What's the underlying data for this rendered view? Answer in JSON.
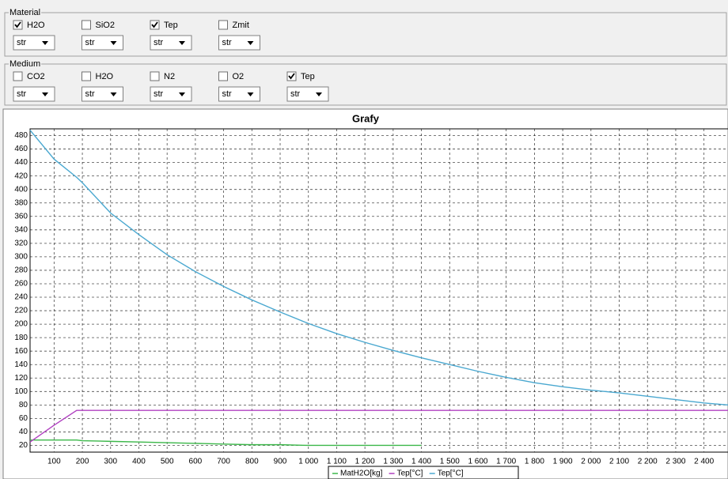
{
  "material": {
    "title": "Material",
    "items": [
      {
        "label": "H2O",
        "checked": true,
        "select": "str"
      },
      {
        "label": "SiO2",
        "checked": false,
        "select": "str"
      },
      {
        "label": "Tep",
        "checked": true,
        "select": "str"
      },
      {
        "label": "Zmit",
        "checked": false,
        "select": "str"
      }
    ]
  },
  "medium": {
    "title": "Medium",
    "items": [
      {
        "label": "CO2",
        "checked": false,
        "select": "str"
      },
      {
        "label": "H2O",
        "checked": false,
        "select": "str"
      },
      {
        "label": "N2",
        "checked": false,
        "select": "str"
      },
      {
        "label": "O2",
        "checked": false,
        "select": "str"
      },
      {
        "label": "Tep",
        "checked": true,
        "select": "str"
      }
    ]
  },
  "chart_data": {
    "type": "line",
    "title": "Grafy",
    "grid": true,
    "legend": "bottom",
    "x": [
      15,
      100,
      180,
      200,
      300,
      400,
      500,
      600,
      700,
      800,
      900,
      1000,
      1100,
      1200,
      1300,
      1400,
      1500,
      1600,
      1700,
      1800,
      1900,
      2000,
      2100,
      2200,
      2300,
      2400,
      2485
    ],
    "series": [
      {
        "name": "MatH2O[kg]",
        "color": "#3cb84a",
        "values": [
          28,
          28,
          28,
          27,
          26,
          25,
          24,
          23,
          22,
          21,
          21,
          20,
          20,
          20,
          20,
          20,
          null,
          null,
          null,
          null,
          null,
          null,
          null,
          null,
          null,
          null,
          null
        ]
      },
      {
        "name": "Tep[°C]",
        "color": "#b040c0",
        "values": [
          25,
          50,
          72,
          72,
          72,
          72,
          72,
          72,
          72,
          72,
          72,
          72,
          72,
          72,
          72,
          72,
          72,
          72,
          72,
          72,
          72,
          72,
          72,
          72,
          72,
          72,
          72
        ]
      },
      {
        "name": "Tep[°C]",
        "color": "#4aa8d0",
        "values": [
          488,
          445,
          418,
          410,
          365,
          333,
          303,
          278,
          256,
          236,
          218,
          201,
          186,
          173,
          161,
          150,
          140,
          130,
          121,
          113,
          107,
          102,
          98,
          93,
          88,
          83,
          80
        ]
      }
    ],
    "xlim": [
      15,
      2485
    ],
    "ylim": [
      10,
      490
    ],
    "xticks": [
      100,
      200,
      300,
      400,
      500,
      600,
      700,
      800,
      900,
      {
        "value": 1000,
        "label": "1 000"
      },
      {
        "value": 1100,
        "label": "1 100"
      },
      {
        "value": 1200,
        "label": "1 200"
      },
      {
        "value": 1300,
        "label": "1 300"
      },
      {
        "value": 1400,
        "label": "1 400"
      },
      {
        "value": 1500,
        "label": "1 500"
      },
      {
        "value": 1600,
        "label": "1 600"
      },
      {
        "value": 1700,
        "label": "1 700"
      },
      {
        "value": 1800,
        "label": "1 800"
      },
      {
        "value": 1900,
        "label": "1 900"
      },
      {
        "value": 2000,
        "label": "2 000"
      },
      {
        "value": 2100,
        "label": "2 100"
      },
      {
        "value": 2200,
        "label": "2 200"
      },
      {
        "value": 2300,
        "label": "2 300"
      },
      {
        "value": 2400,
        "label": "2 400"
      }
    ],
    "yticks": [
      20,
      40,
      60,
      80,
      100,
      120,
      140,
      160,
      180,
      200,
      220,
      240,
      260,
      280,
      300,
      320,
      340,
      360,
      380,
      400,
      420,
      440,
      460,
      480
    ]
  }
}
